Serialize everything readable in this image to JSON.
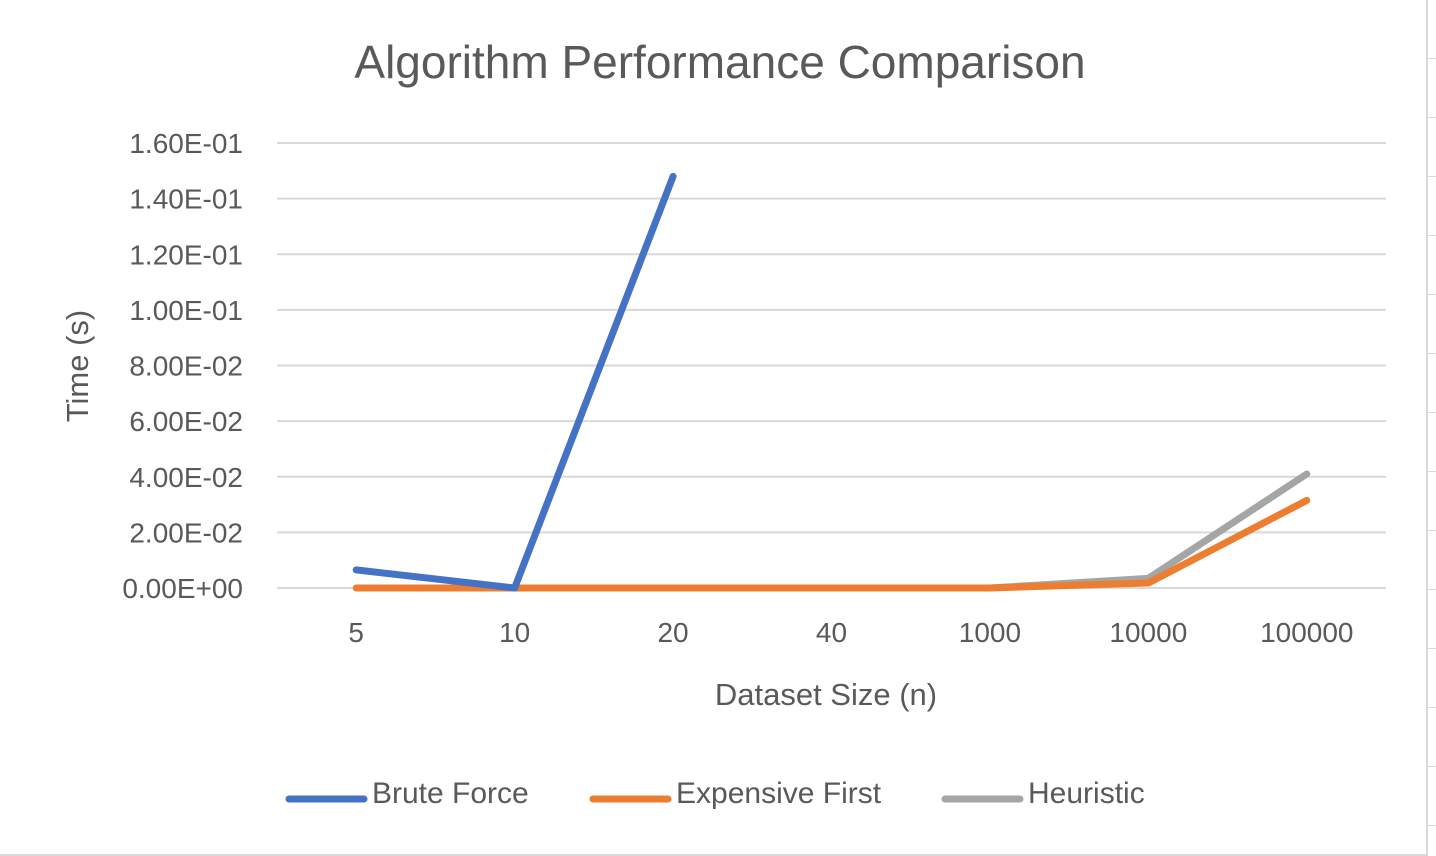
{
  "chart_data": {
    "type": "line",
    "title": "Algorithm Performance Comparison",
    "xlabel": "Dataset Size (n)",
    "ylabel": "Time (s)",
    "categories": [
      "5",
      "10",
      "20",
      "40",
      "1000",
      "10000",
      "100000"
    ],
    "y_ticks": [
      "0.00E+00",
      "2.00E-02",
      "4.00E-02",
      "6.00E-02",
      "8.00E-02",
      "1.00E-01",
      "1.20E-01",
      "1.40E-01",
      "1.60E-01"
    ],
    "ylim": [
      0,
      0.16
    ],
    "grid": true,
    "legend_position": "bottom",
    "series": [
      {
        "name": "Brute Force",
        "color": "#4472c4",
        "values": [
          0.0065,
          0.0,
          0.148,
          null,
          null,
          null,
          null
        ]
      },
      {
        "name": "Expensive First",
        "color": "#ed7d31",
        "values": [
          0.0,
          0.0,
          0.0,
          0.0,
          0.0,
          0.0018,
          0.0315
        ]
      },
      {
        "name": "Heuristic",
        "color": "#a5a5a5",
        "values": [
          null,
          0.0,
          0.0,
          0.0,
          0.0,
          0.0035,
          0.041
        ]
      }
    ]
  }
}
